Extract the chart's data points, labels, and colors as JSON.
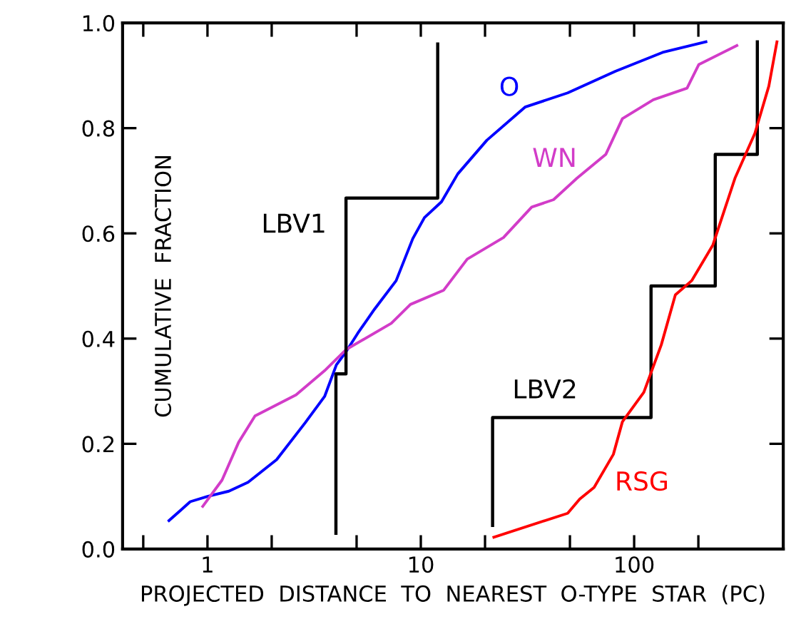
{
  "chart_data": {
    "type": "line",
    "xlabel": "PROJECTED  DISTANCE  TO  NEAREST  O-TYPE  STAR  (PC)",
    "ylabel": "CUMULATIVE  FRACTION",
    "log": "x",
    "xlim": [
      0.4,
      500
    ],
    "ylim": [
      0,
      1.0
    ],
    "xticks": [
      {
        "value": 0.5,
        "label": null
      },
      1,
      {
        "value": 2,
        "label": null
      },
      {
        "value": 5,
        "label": null
      },
      10,
      {
        "value": 20,
        "label": null
      },
      {
        "value": 50,
        "label": null
      },
      100,
      {
        "value": 200,
        "label": null
      },
      {
        "value": 500,
        "label": null
      }
    ],
    "yticks": [
      {
        "value": 0,
        "label": "0.0"
      },
      0.2,
      0.4,
      0.6,
      0.8,
      {
        "value": 1,
        "label": "1.0"
      }
    ],
    "grid": false,
    "legend": false,
    "marker": "none",
    "line_style": "solid",
    "series": [
      {
        "name": "O",
        "color": "#0000ff",
        "x": [
          0.66,
          0.83,
          1.0,
          1.26,
          1.55,
          2.11,
          2.87,
          3.54,
          4.02,
          4.46,
          5.06,
          6.07,
          7.66,
          9.17,
          10.4,
          12.5,
          14.9,
          20.4,
          30.8,
          48.8,
          81.6,
          136,
          217
        ],
        "values": [
          0.054,
          0.09,
          0.1,
          0.11,
          0.127,
          0.17,
          0.24,
          0.29,
          0.35,
          0.375,
          0.41,
          0.456,
          0.51,
          0.59,
          0.63,
          0.66,
          0.713,
          0.777,
          0.84,
          0.867,
          0.908,
          0.944,
          0.964
        ]
      },
      {
        "name": "WN",
        "color": "#d23cc8",
        "x": [
          0.95,
          1.17,
          1.4,
          1.67,
          2.6,
          3.54,
          4.46,
          7.27,
          8.94,
          12.8,
          16.5,
          24.4,
          33.1,
          41.9,
          54.0,
          73.6,
          88.1,
          123,
          177,
          201,
          303
        ],
        "values": [
          0.081,
          0.131,
          0.203,
          0.253,
          0.293,
          0.339,
          0.379,
          0.429,
          0.465,
          0.492,
          0.551,
          0.592,
          0.65,
          0.664,
          0.705,
          0.75,
          0.818,
          0.854,
          0.876,
          0.921,
          0.957
        ]
      },
      {
        "name": "LBV1",
        "color": "#000000",
        "x": [
          4.0,
          4.0,
          4.46,
          4.46,
          12,
          12
        ],
        "values": [
          0.03,
          0.333,
          0.333,
          0.667,
          0.667,
          0.96
        ]
      },
      {
        "name": "LBV2",
        "color": "#000000",
        "x": [
          21.7,
          21.7,
          120,
          120,
          240,
          240,
          378,
          378
        ],
        "values": [
          0.045,
          0.25,
          0.25,
          0.5,
          0.5,
          0.75,
          0.75,
          0.964
        ]
      },
      {
        "name": "RSG",
        "color": "#ff0000",
        "x": [
          22.0,
          48.8,
          55.6,
          64.9,
          79.9,
          88.1,
          111,
          134,
          156,
          186,
          234,
          297,
          368,
          428,
          467
        ],
        "values": [
          0.0226,
          0.068,
          0.095,
          0.117,
          0.18,
          0.242,
          0.298,
          0.388,
          0.483,
          0.51,
          0.578,
          0.705,
          0.79,
          0.88,
          0.964
        ]
      }
    ]
  }
}
